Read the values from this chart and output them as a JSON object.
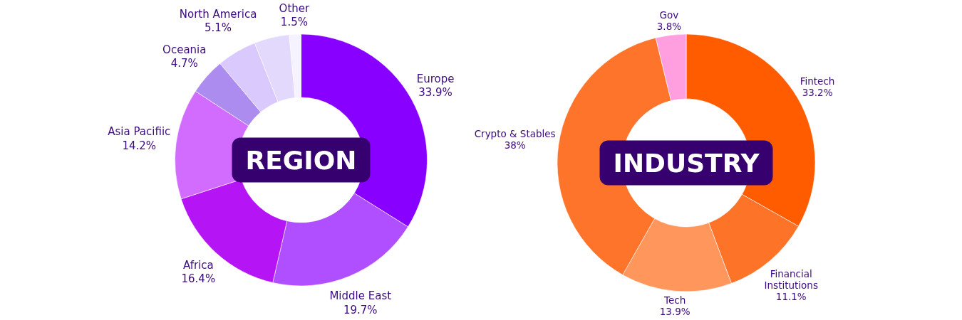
{
  "chart_data": [
    {
      "type": "donut",
      "title": "REGION",
      "categories": [
        "Europe",
        "Middle East",
        "Africa",
        "Asia Pacifiic",
        "Oceania",
        "North America",
        null,
        "Other"
      ],
      "values": [
        33.9,
        19.7,
        16.4,
        14.2,
        4.7,
        5.1,
        4.5,
        1.5
      ],
      "colors": [
        "#8800ff",
        "#b04fff",
        "#b515f5",
        "#d26bff",
        "#ad8cf0",
        "#d9c9fc",
        "#e3d9fc",
        "#f6f2ff"
      ],
      "value_labels": [
        "33.9%",
        "19.7%",
        "16.4%",
        "14.2%",
        "4.7%",
        "5.1%",
        null,
        "1.5%"
      ]
    },
    {
      "type": "donut",
      "title": "INDUSTRY",
      "categories": [
        "Fintech",
        "Financial\nInstitutions",
        "Tech",
        "Crypto & Stables",
        "Gov"
      ],
      "values": [
        33.2,
        11.1,
        13.9,
        38,
        3.8
      ],
      "colors": [
        "#ff5c00",
        "#fd7328",
        "#ff965c",
        "#fe742a",
        "#ff9fe0"
      ],
      "value_labels": [
        "33.2%",
        "11.1%",
        "13.9%",
        "38%",
        "3.8%"
      ]
    }
  ]
}
